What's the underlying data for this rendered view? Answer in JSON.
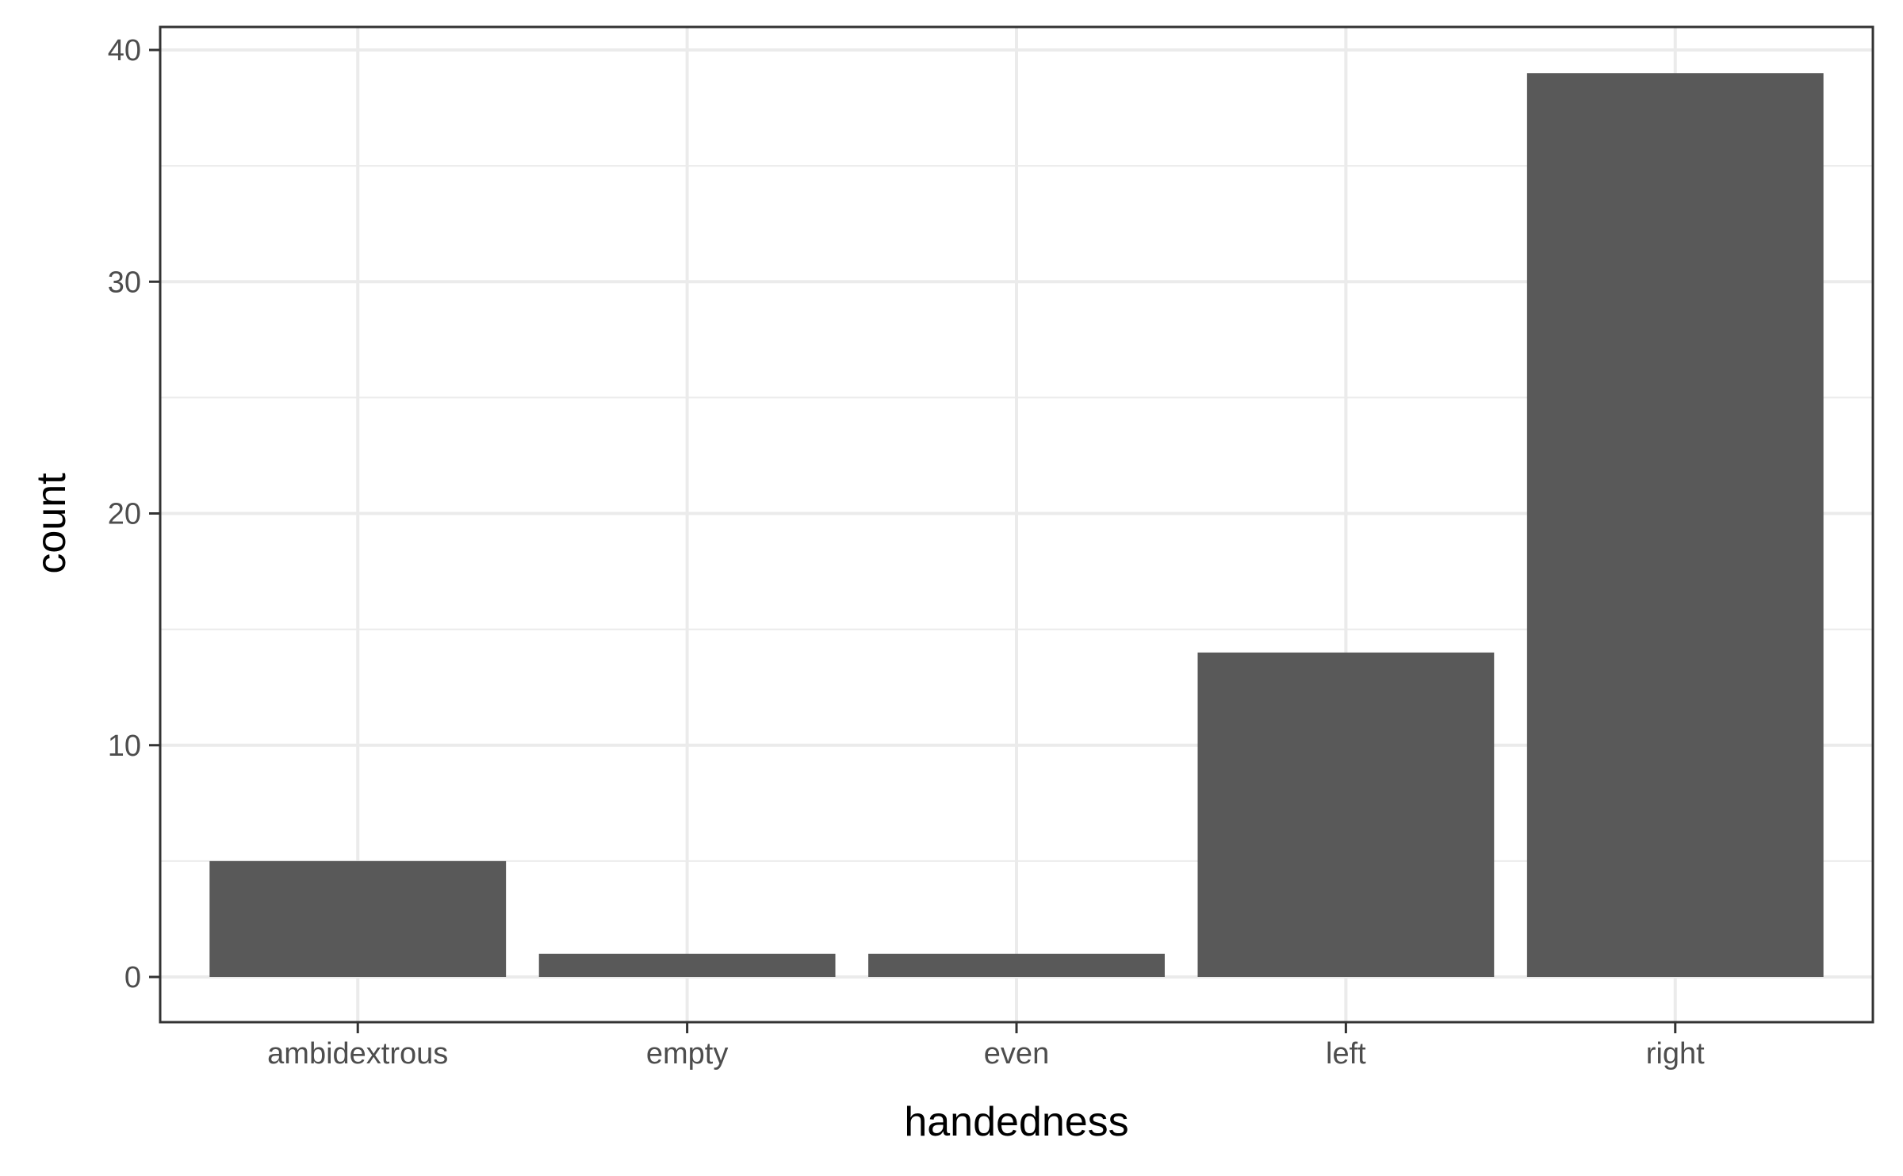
{
  "chart_data": {
    "type": "bar",
    "categories": [
      "ambidextrous",
      "empty",
      "even",
      "left",
      "right"
    ],
    "values": [
      5,
      1,
      1,
      14,
      39
    ],
    "xlabel": "handedness",
    "ylabel": "count",
    "ylim": [
      -2,
      41
    ],
    "yticks": [
      0,
      10,
      20,
      30,
      40
    ],
    "grid": true,
    "bar_color": "#595959",
    "theme": "bw"
  }
}
